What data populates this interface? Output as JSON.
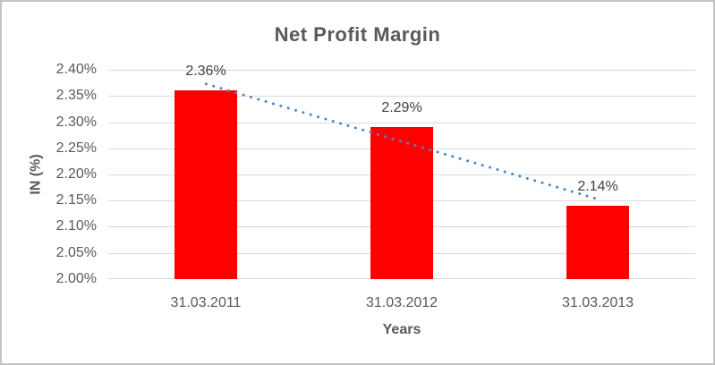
{
  "chart_data": {
    "type": "bar",
    "title": "Net Profit Margin",
    "xlabel": "Years",
    "ylabel": "IN (%)",
    "categories": [
      "31.03.2011",
      "31.03.2012",
      "31.03.2013"
    ],
    "values": [
      2.36,
      2.29,
      2.14
    ],
    "data_labels": [
      "2.36%",
      "2.29%",
      "2.14%"
    ],
    "ylim": [
      2.0,
      2.4
    ],
    "y_ticks": [
      {
        "value": 2.4,
        "label": "2.40%"
      },
      {
        "value": 2.35,
        "label": "2.35%"
      },
      {
        "value": 2.3,
        "label": "2.30%"
      },
      {
        "value": 2.25,
        "label": "2.25%"
      },
      {
        "value": 2.2,
        "label": "2.20%"
      },
      {
        "value": 2.15,
        "label": "2.15%"
      },
      {
        "value": 2.1,
        "label": "2.10%"
      },
      {
        "value": 2.05,
        "label": "2.05%"
      },
      {
        "value": 2.0,
        "label": "2.00%"
      }
    ],
    "grid": true,
    "legend": "none",
    "bar_color": "#ff0000",
    "gridline_color": "#d9d9d9",
    "text_color": "#595959",
    "data_label_color": "#404040",
    "trendline": {
      "type": "linear",
      "style": "dotted",
      "color": "#4e87c8",
      "start_value": 2.373,
      "end_value": 2.153
    }
  }
}
